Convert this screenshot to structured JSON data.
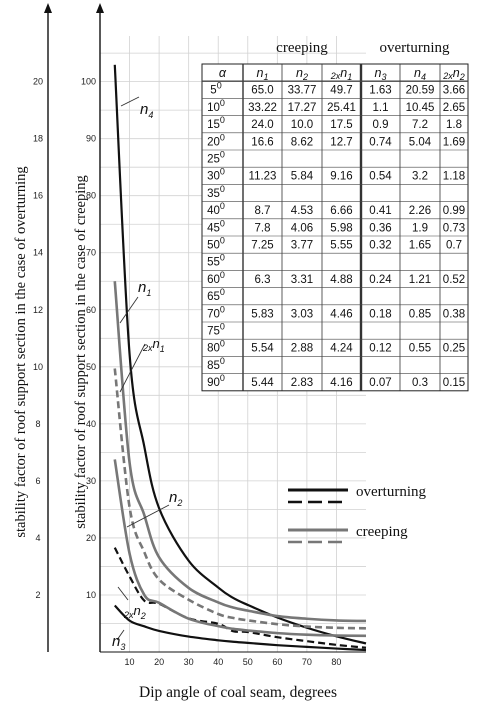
{
  "chart_data": {
    "type": "line",
    "xlabel": "Dip angle of coal seam, degrees",
    "ylabel_inner": "stability factor of roof support section in the case of creeping",
    "ylabel_outer": "stability factor of roof support section in the case of overturning",
    "x_ticks": [
      "10",
      "20",
      "30",
      "40",
      "50",
      "60",
      "70",
      "80"
    ],
    "xlim": [
      0,
      90
    ],
    "inner_y_ticks": [
      "10",
      "20",
      "30",
      "40",
      "50",
      "60",
      "70",
      "80",
      "90",
      "100"
    ],
    "inner_ylim": [
      0,
      108
    ],
    "outer_y_ticks": [
      "2",
      "4",
      "6",
      "8",
      "10",
      "12",
      "14",
      "16",
      "18",
      "20"
    ],
    "outer_ylim": [
      0,
      21.6
    ],
    "grid": true,
    "x": [
      5,
      10,
      15,
      20,
      30,
      40,
      45,
      50,
      60,
      70,
      80,
      90
    ],
    "series": [
      {
        "name": "n4",
        "group": "overturning",
        "style": "solid",
        "axis": "outer",
        "values": [
          20.59,
          10.45,
          7.2,
          5.04,
          3.2,
          2.26,
          1.9,
          1.65,
          1.21,
          0.85,
          0.55,
          0.3
        ]
      },
      {
        "name": "n3",
        "group": "overturning",
        "style": "solid",
        "axis": "outer",
        "values": [
          1.63,
          1.1,
          0.9,
          0.74,
          0.54,
          0.41,
          0.36,
          0.32,
          0.24,
          0.18,
          0.12,
          0.07
        ]
      },
      {
        "name": "2xn2",
        "group": "overturning",
        "style": "dashed",
        "axis": "outer",
        "values": [
          3.66,
          2.65,
          1.8,
          1.69,
          1.18,
          0.99,
          0.73,
          0.7,
          0.52,
          0.38,
          0.25,
          0.15
        ]
      },
      {
        "name": "n1",
        "group": "creeping",
        "style": "solid",
        "axis": "inner",
        "values": [
          65.0,
          33.22,
          24.0,
          16.6,
          11.23,
          8.7,
          7.8,
          7.25,
          6.3,
          5.83,
          5.54,
          5.44
        ]
      },
      {
        "name": "n2",
        "group": "creeping",
        "style": "solid",
        "axis": "inner",
        "values": [
          33.77,
          17.27,
          10.0,
          8.62,
          5.84,
          4.53,
          4.06,
          3.77,
          3.31,
          3.03,
          2.88,
          2.83
        ]
      },
      {
        "name": "2xn1",
        "group": "creeping",
        "style": "dashed",
        "axis": "inner",
        "values": [
          49.7,
          25.41,
          17.5,
          12.7,
          9.16,
          6.66,
          5.98,
          5.55,
          4.88,
          4.46,
          4.24,
          4.16
        ]
      }
    ],
    "curve_labels": {
      "n4": {
        "main": "n",
        "sub": "4"
      },
      "n1": {
        "main": "n",
        "sub": "1"
      },
      "n1x2": {
        "pre": "2x",
        "main": "n",
        "sub": "1"
      },
      "n2": {
        "main": "n",
        "sub": "2"
      },
      "n2x2": {
        "pre": "2x",
        "main": "n",
        "sub": "2"
      },
      "n3": {
        "main": "n",
        "sub": "3"
      }
    },
    "legend": {
      "placement": "bottom-right",
      "items": [
        {
          "label": "overturning",
          "color": "#111111"
        },
        {
          "label": "creeping",
          "color": "#777777"
        }
      ]
    },
    "colors": {
      "overturning": "#111111",
      "creeping": "#777777",
      "grid": "#d2d2d2"
    },
    "table": {
      "group_headers": [
        "creeping",
        "overturning"
      ],
      "columns": [
        {
          "main": "α"
        },
        {
          "main": "n",
          "sub": "1"
        },
        {
          "main": "n",
          "sub": "2"
        },
        {
          "pre": "2x",
          "main": "n",
          "sub": "1"
        },
        {
          "main": "n",
          "sub": "3"
        },
        {
          "main": "n",
          "sub": "4"
        },
        {
          "pre": "2x",
          "main": "n",
          "sub": "2"
        }
      ],
      "rows": [
        {
          "angle": "5",
          "values": [
            "65.0",
            "33.77",
            "49.7",
            "1.63",
            "20.59",
            "3.66"
          ]
        },
        {
          "angle": "10",
          "values": [
            "33.22",
            "17.27",
            "25.41",
            "1.1",
            "10.45",
            "2.65"
          ]
        },
        {
          "angle": "15",
          "values": [
            "24.0",
            "10.0",
            "17.5",
            "0.9",
            "7.2",
            "1.8"
          ]
        },
        {
          "angle": "20",
          "values": [
            "16.6",
            "8.62",
            "12.7",
            "0.74",
            "5.04",
            "1.69"
          ]
        },
        {
          "angle": "25",
          "values": [
            "",
            "",
            "",
            "",
            "",
            ""
          ]
        },
        {
          "angle": "30",
          "values": [
            "11.23",
            "5.84",
            "9.16",
            "0.54",
            "3.2",
            "1.18"
          ]
        },
        {
          "angle": "35",
          "values": [
            "",
            "",
            "",
            "",
            "",
            ""
          ]
        },
        {
          "angle": "40",
          "values": [
            "8.7",
            "4.53",
            "6.66",
            "0.41",
            "2.26",
            "0.99"
          ]
        },
        {
          "angle": "45",
          "values": [
            "7.8",
            "4.06",
            "5.98",
            "0.36",
            "1.9",
            "0.73"
          ]
        },
        {
          "angle": "50",
          "values": [
            "7.25",
            "3.77",
            "5.55",
            "0.32",
            "1.65",
            "0.7"
          ]
        },
        {
          "angle": "55",
          "values": [
            "",
            "",
            "",
            "",
            "",
            ""
          ]
        },
        {
          "angle": "60",
          "values": [
            "6.3",
            "3.31",
            "4.88",
            "0.24",
            "1.21",
            "0.52"
          ]
        },
        {
          "angle": "65",
          "values": [
            "",
            "",
            "",
            "",
            "",
            ""
          ]
        },
        {
          "angle": "70",
          "values": [
            "5.83",
            "3.03",
            "4.46",
            "0.18",
            "0.85",
            "0.38"
          ]
        },
        {
          "angle": "75",
          "values": [
            "",
            "",
            "",
            "",
            "",
            ""
          ]
        },
        {
          "angle": "80",
          "values": [
            "5.54",
            "2.88",
            "4.24",
            "0.12",
            "0.55",
            "0.25"
          ]
        },
        {
          "angle": "85",
          "values": [
            "",
            "",
            "",
            "",
            "",
            ""
          ]
        },
        {
          "angle": "90",
          "values": [
            "5.44",
            "2.83",
            "4.16",
            "0.07",
            "0.3",
            "0.15"
          ]
        }
      ]
    }
  }
}
